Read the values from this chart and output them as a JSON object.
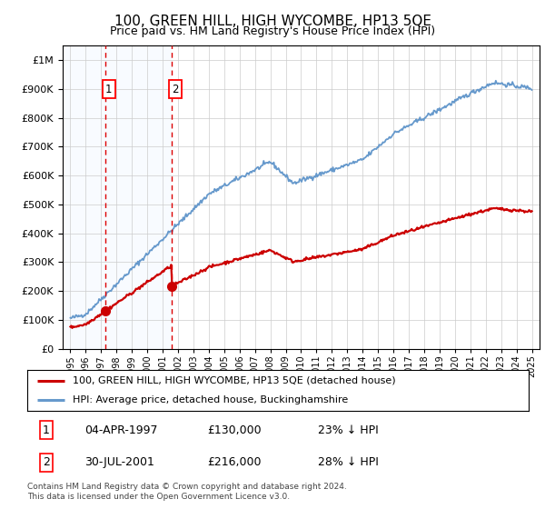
{
  "title": "100, GREEN HILL, HIGH WYCOMBE, HP13 5QE",
  "subtitle": "Price paid vs. HM Land Registry's House Price Index (HPI)",
  "legend_line1": "100, GREEN HILL, HIGH WYCOMBE, HP13 5QE (detached house)",
  "legend_line2": "HPI: Average price, detached house, Buckinghamshire",
  "footnote1": "Contains HM Land Registry data © Crown copyright and database right 2024.",
  "footnote2": "This data is licensed under the Open Government Licence v3.0.",
  "table_row1": [
    "1",
    "04-APR-1997",
    "£130,000",
    "23% ↓ HPI"
  ],
  "table_row2": [
    "2",
    "30-JUL-2001",
    "£216,000",
    "28% ↓ HPI"
  ],
  "sale1_date": 1997.25,
  "sale1_price": 130000,
  "sale2_date": 2001.58,
  "sale2_price": 216000,
  "red_line_color": "#cc0000",
  "blue_line_color": "#6699cc",
  "sale_dot_color": "#cc0000",
  "vline_color": "#dd0000",
  "highlight_color": "#ddeeff",
  "grid_color": "#cccccc",
  "ylim": [
    0,
    1050000
  ],
  "xlim_start": 1994.5,
  "xlim_end": 2025.5
}
